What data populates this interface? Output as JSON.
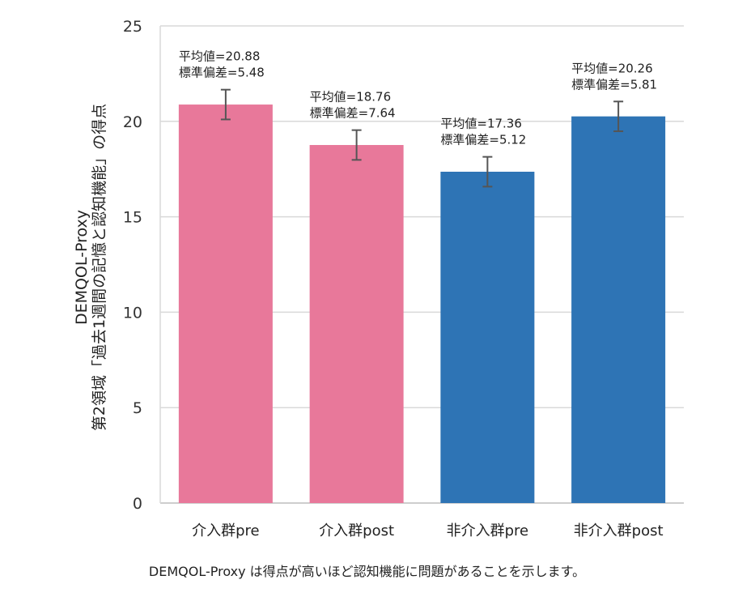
{
  "chart_data": {
    "type": "bar",
    "categories": [
      "介入群pre",
      "介入群post",
      "非介入群pre",
      "非介入群post"
    ],
    "values": [
      20.88,
      18.76,
      17.36,
      20.26
    ],
    "errors": [
      0.78,
      0.78,
      0.78,
      0.78
    ],
    "colors": [
      "#e8789a",
      "#e8789a",
      "#2e74b5",
      "#2e74b5"
    ],
    "annotations": [
      [
        "平均値=20.88",
        "標準偏差=5.48"
      ],
      [
        "平均値=18.76",
        "標準偏差=7.64"
      ],
      [
        "平均値=17.36",
        "標準偏差=5.12"
      ],
      [
        "平均値=20.26",
        "標準偏差=5.81"
      ]
    ],
    "ylabel_line1": "DEMQOL-Proxy",
    "ylabel_line2": "第2領域「過去1週間の記憶と認知機能」の得点",
    "ylim": [
      0,
      25
    ],
    "yticks": [
      0,
      5,
      10,
      15,
      20,
      25
    ],
    "grid": true
  },
  "caption": "DEMQOL-Proxy は得点が高いほど認知機能に問題があることを示します。"
}
